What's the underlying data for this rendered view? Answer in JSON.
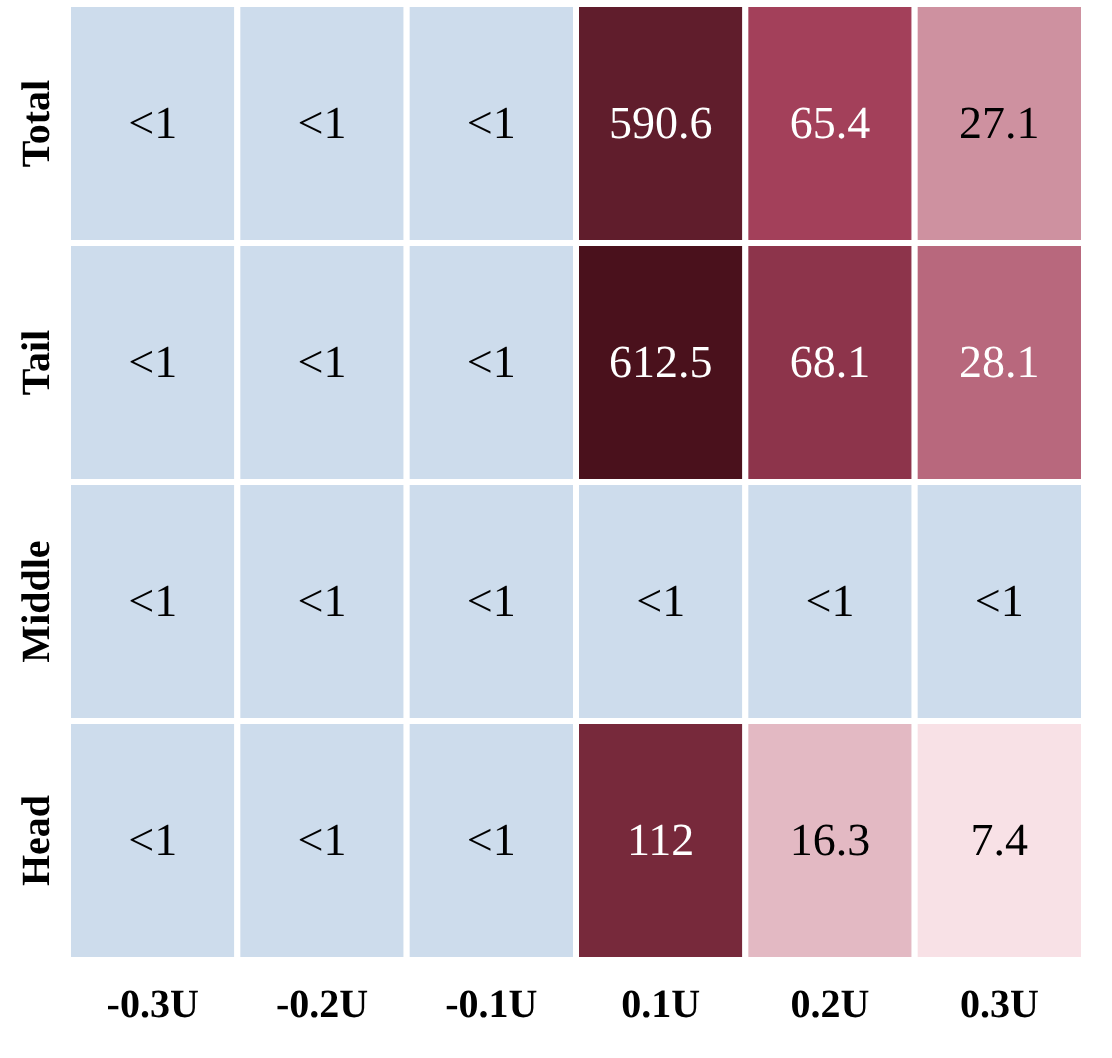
{
  "chart_data": {
    "type": "heatmap",
    "categories": [
      "-0.3U",
      "-0.2U",
      "-0.1U",
      "0.1U",
      "0.2U",
      "0.3U"
    ],
    "y_categories": [
      "Total",
      "Tail",
      "Middle",
      "Head"
    ],
    "cells": [
      [
        null,
        null,
        null,
        590.6,
        65.4,
        27.1
      ],
      [
        null,
        null,
        null,
        612.5,
        68.1,
        28.1
      ],
      [
        null,
        null,
        null,
        null,
        null,
        null
      ],
      [
        null,
        null,
        null,
        112,
        16.3,
        7.4
      ]
    ],
    "cell_labels": [
      [
        "<1",
        "<1",
        "<1",
        "590.6",
        "65.4",
        "27.1"
      ],
      [
        "<1",
        "<1",
        "<1",
        "612.5",
        "68.1",
        "28.1"
      ],
      [
        "<1",
        "<1",
        "<1",
        "<1",
        "<1",
        "<1"
      ],
      [
        "<1",
        "<1",
        "<1",
        "112",
        "16.3",
        "7.4"
      ]
    ]
  }
}
